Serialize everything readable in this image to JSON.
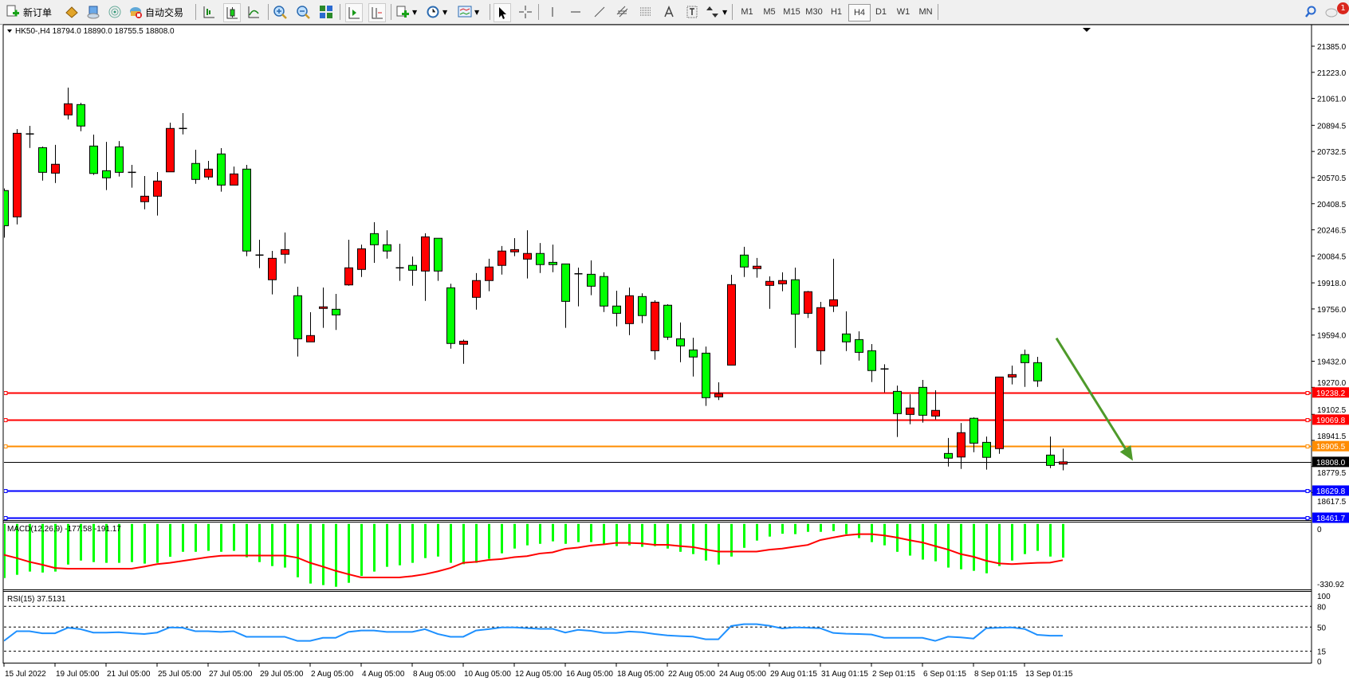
{
  "toolbar": {
    "new_order_label": "新订单",
    "auto_trading_label": "自动交易",
    "icons": [
      "new-order-icon",
      "market-watch-icon",
      "navigator-icon",
      "signals-icon",
      "auto-trading-icon",
      "bar-chart-icon",
      "candlestick-icon",
      "line-chart-icon",
      "zoom-in-icon",
      "zoom-out-icon",
      "tile-windows-icon",
      "autoscroll-icon",
      "chart-shift-icon",
      "indicators-icon",
      "periods-icon",
      "templates-icon",
      "cursor-icon",
      "crosshair-icon",
      "vertical-line-icon",
      "horizontal-line-icon",
      "trendline-icon",
      "equidistant-channel-icon",
      "fibonacci-icon",
      "text-icon",
      "text-label-icon",
      "arrows-icon",
      "search-icon",
      "chat-icon"
    ],
    "timeframes": [
      "M1",
      "M5",
      "M15",
      "M30",
      "H1",
      "H4",
      "D1",
      "W1",
      "MN"
    ],
    "active_timeframe": "H4",
    "notification_count": "1"
  },
  "chart": {
    "header": "HK50-,H4  18794.0 18890.0 18755.5 18808.0",
    "colors": {
      "bull": "#ff0000",
      "bear": "#00ff00",
      "macd_hist": "#00ff00",
      "macd_signal": "#ff0000",
      "rsi": "#1e90ff",
      "arrow": "#4e9a2a"
    },
    "price_axis": [
      "21385.0",
      "21223.0",
      "21061.0",
      "20894.5",
      "20732.5",
      "20570.5",
      "20408.5",
      "20246.5",
      "20084.5",
      "19918.0",
      "19756.0",
      "19594.0",
      "19432.0",
      "19270.0",
      "19102.5",
      "18941.5",
      "18779.5",
      "18617.5"
    ],
    "levels": [
      {
        "price": 19238.2,
        "label": "19238.2",
        "color": "#ff0000"
      },
      {
        "price": 19069.8,
        "label": "19069.8",
        "color": "#ff0000"
      },
      {
        "price": 18905.5,
        "label": "18905.5",
        "color": "#ff8c00"
      },
      {
        "price": 18808.0,
        "label": "18808.0",
        "color": "#000000"
      },
      {
        "price": 18629.8,
        "label": "18629.8",
        "color": "#0000ff"
      },
      {
        "price": 18461.7,
        "label": "18461.7",
        "color": "#0000ff"
      }
    ],
    "arrow": {
      "from": {
        "bar": 82.5,
        "price": 19575
      },
      "to": {
        "bar": 88.5,
        "price": 18815
      }
    },
    "time_axis": [
      "15 Jul 2022",
      "19 Jul 05:00",
      "21 Jul 05:00",
      "25 Jul 05:00",
      "27 Jul 05:00",
      "29 Jul 05:00",
      "2 Aug 05:00",
      "4 Aug 05:00",
      "8 Aug 05:00",
      "10 Aug 05:00",
      "12 Aug 05:00",
      "16 Aug 05:00",
      "18 Aug 05:00",
      "22 Aug 05:00",
      "24 Aug 05:00",
      "29 Aug 01:15",
      "31 Aug 01:15",
      "2 Sep 01:15",
      "6 Sep 01:15",
      "8 Sep 01:15",
      "13 Sep 01:15"
    ],
    "macd": {
      "label": "MACD(12,26,9) -177.58 -191.17",
      "axis_top": "0",
      "axis_bottom": "-330.92"
    },
    "rsi": {
      "label": "RSI(15) 37.5131",
      "axis": [
        "100",
        "80",
        "50",
        "15",
        "0"
      ]
    }
  },
  "chart_data": {
    "type": "candlestick",
    "symbol": "HK50-",
    "timeframe": "H4",
    "ohlc": [
      [
        20490,
        20503,
        20198,
        20272
      ],
      [
        20327,
        20871,
        20280,
        20845
      ],
      [
        20841,
        20891,
        20754,
        20845
      ],
      [
        20756,
        20763,
        20552,
        20603
      ],
      [
        20598,
        20773,
        20537,
        20653
      ],
      [
        20959,
        21128,
        20931,
        21028
      ],
      [
        21023,
        21034,
        20858,
        20890
      ],
      [
        20766,
        20837,
        20587,
        20596
      ],
      [
        20613,
        20792,
        20493,
        20569
      ],
      [
        20761,
        20797,
        20577,
        20603
      ],
      [
        20603,
        20649,
        20508,
        20603
      ],
      [
        20421,
        20580,
        20374,
        20455
      ],
      [
        20455,
        20605,
        20335,
        20549
      ],
      [
        20606,
        20911,
        20606,
        20875
      ],
      [
        20875,
        20970,
        20838,
        20875
      ],
      [
        20658,
        20743,
        20532,
        20559
      ],
      [
        20574,
        20674,
        20557,
        20623
      ],
      [
        20717,
        20753,
        20483,
        20524
      ],
      [
        20524,
        20639,
        20524,
        20593
      ],
      [
        20623,
        20649,
        20083,
        20115
      ],
      [
        20090,
        20185,
        20009,
        20090
      ],
      [
        19937,
        20116,
        19846,
        20070
      ],
      [
        20095,
        20230,
        20038,
        20124
      ],
      [
        19838,
        19894,
        19461,
        19571
      ],
      [
        19552,
        19736,
        19552,
        19591
      ],
      [
        19759,
        19889,
        19639,
        19769
      ],
      [
        19754,
        19849,
        19626,
        19719
      ],
      [
        19905,
        20185,
        19900,
        20011
      ],
      [
        20001,
        20155,
        19954,
        20129
      ],
      [
        20223,
        20294,
        20042,
        20154
      ],
      [
        20154,
        20244,
        20068,
        20115
      ],
      [
        20011,
        20160,
        19930,
        20011
      ],
      [
        20026,
        20081,
        19900,
        19996
      ],
      [
        19991,
        20225,
        19806,
        20203
      ],
      [
        20194,
        20194,
        19930,
        19991
      ],
      [
        19887,
        19912,
        19510,
        19542
      ],
      [
        19537,
        19566,
        19416,
        19556
      ],
      [
        19828,
        19978,
        19752,
        19932
      ],
      [
        19932,
        20067,
        19866,
        20016
      ],
      [
        20026,
        20146,
        19969,
        20115
      ],
      [
        20110,
        20195,
        20083,
        20124
      ],
      [
        20065,
        20244,
        19945,
        20100
      ],
      [
        20100,
        20165,
        19979,
        20031
      ],
      [
        20045,
        20155,
        19984,
        20031
      ],
      [
        20035,
        20035,
        19639,
        19803
      ],
      [
        19974,
        20012,
        19772,
        19974
      ],
      [
        19971,
        20057,
        19841,
        19897
      ],
      [
        19957,
        19983,
        19737,
        19774
      ],
      [
        19774,
        19869,
        19648,
        19729
      ],
      [
        19665,
        19889,
        19594,
        19838
      ],
      [
        19833,
        19853,
        19668,
        19715
      ],
      [
        19497,
        19810,
        19441,
        19798
      ],
      [
        19779,
        19785,
        19564,
        19581
      ],
      [
        19571,
        19672,
        19426,
        19527
      ],
      [
        19502,
        19578,
        19337,
        19458
      ],
      [
        19482,
        19523,
        19155,
        19206
      ],
      [
        19211,
        19301,
        19191,
        19231
      ],
      [
        19408,
        19968,
        19408,
        19907
      ],
      [
        20090,
        20141,
        19954,
        20016
      ],
      [
        20006,
        20072,
        19950,
        20021
      ],
      [
        19902,
        19958,
        19757,
        19927
      ],
      [
        19912,
        19983,
        19866,
        19932
      ],
      [
        19937,
        20012,
        19515,
        19724
      ],
      [
        19729,
        19868,
        19700,
        19863
      ],
      [
        19497,
        19800,
        19411,
        19764
      ],
      [
        19774,
        20067,
        19737,
        19813
      ],
      [
        19601,
        19741,
        19495,
        19552
      ],
      [
        19566,
        19617,
        19436,
        19487
      ],
      [
        19497,
        19538,
        19303,
        19374
      ],
      [
        19384,
        19413,
        19239,
        19384
      ],
      [
        19245,
        19281,
        18962,
        19107
      ],
      [
        19102,
        19227,
        19041,
        19142
      ],
      [
        19270,
        19316,
        19051,
        19097
      ],
      [
        19092,
        19252,
        19071,
        19127
      ],
      [
        18860,
        18956,
        18779,
        18831
      ],
      [
        18838,
        19049,
        18764,
        18989
      ],
      [
        19078,
        19084,
        18868,
        18924
      ],
      [
        18929,
        18965,
        18760,
        18836
      ],
      [
        18890,
        19334,
        18858,
        19334
      ],
      [
        19334,
        19405,
        19288,
        19349
      ],
      [
        19473,
        19504,
        19273,
        19423
      ],
      [
        19423,
        19459,
        19273,
        19310
      ],
      [
        18850,
        18965,
        18769,
        18786
      ],
      [
        18794,
        18890,
        18755.5,
        18808
      ]
    ],
    "ylim": [
      18461.7,
      21385.0
    ],
    "macd_main": [
      -285,
      -268,
      -251,
      -256,
      -251,
      -214,
      -193,
      -201,
      -205,
      -205,
      -201,
      -209,
      -205,
      -173,
      -147,
      -147,
      -142,
      -147,
      -142,
      -176,
      -201,
      -222,
      -230,
      -281,
      -314,
      -322,
      -331,
      -310,
      -274,
      -251,
      -226,
      -218,
      -205,
      -180,
      -172,
      -205,
      -212,
      -205,
      -184,
      -155,
      -130,
      -113,
      -105,
      -92,
      -105,
      -96,
      -96,
      -105,
      -117,
      -113,
      -121,
      -117,
      -130,
      -147,
      -159,
      -193,
      -214,
      -172,
      -126,
      -88,
      -67,
      -52,
      -54,
      -42,
      -42,
      -38,
      -54,
      -75,
      -96,
      -113,
      -147,
      -167,
      -188,
      -197,
      -230,
      -239,
      -247,
      -260,
      -222,
      -193,
      -159,
      -142,
      -172,
      -177.58
    ],
    "macd_signal": [
      -163,
      -180,
      -200,
      -215,
      -232,
      -236,
      -236,
      -236,
      -236,
      -236,
      -236,
      -225,
      -212,
      -205,
      -195,
      -185,
      -175,
      -168,
      -167,
      -167,
      -167,
      -167,
      -167,
      -178,
      -205,
      -225,
      -247,
      -265,
      -282,
      -282,
      -282,
      -282,
      -275,
      -265,
      -250,
      -232,
      -205,
      -200,
      -190,
      -185,
      -175,
      -170,
      -156,
      -150,
      -131,
      -125,
      -114,
      -108,
      -100,
      -100,
      -103,
      -110,
      -110,
      -117,
      -122,
      -135,
      -146,
      -146,
      -146,
      -146,
      -136,
      -130,
      -120,
      -111,
      -85,
      -72,
      -60,
      -54,
      -54,
      -61,
      -72,
      -86,
      -98,
      -117,
      -135,
      -159,
      -173,
      -194,
      -208,
      -212,
      -208,
      -205,
      -204,
      -191.17
    ],
    "macd_ylim": [
      -330.92,
      0
    ],
    "rsi": [
      30,
      44,
      44,
      41,
      41,
      49,
      47,
      42,
      42,
      42.5,
      41,
      40,
      42,
      49.5,
      49,
      44,
      44,
      43,
      44,
      36,
      36,
      36,
      36,
      30,
      30,
      34.5,
      34.5,
      43,
      45,
      45,
      43,
      43,
      43,
      47,
      40,
      36,
      36,
      45,
      47,
      49.5,
      49.5,
      48.5,
      47.5,
      47.5,
      42,
      46,
      44.6,
      41.5,
      41.5,
      43.5,
      42.5,
      40,
      38,
      37,
      36.2,
      32.3,
      32.3,
      51.5,
      54.2,
      54.2,
      51.9,
      48,
      49.5,
      49,
      48.3,
      41.5,
      40.4,
      40,
      39.2,
      34.5,
      34.5,
      34.5,
      34.5,
      30,
      36,
      35,
      33.4,
      48.3,
      49,
      49.5,
      47.3,
      38.8,
      37.5,
      37.5131
    ],
    "rsi_levels": [
      80,
      50,
      15
    ],
    "rsi_ylim": [
      0,
      100
    ]
  }
}
